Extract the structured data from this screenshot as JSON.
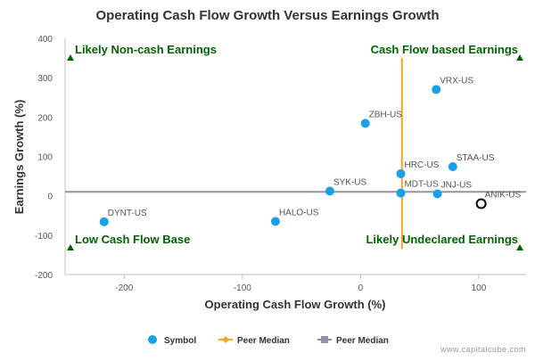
{
  "chart_data": {
    "type": "scatter",
    "title": "Operating Cash Flow Growth Versus Earnings Growth",
    "xlabel": "Operating Cash Flow Growth (%)",
    "ylabel": "Earnings Growth (%)",
    "xlim": [
      -250,
      140
    ],
    "ylim": [
      -200,
      400
    ],
    "x_ticks": [
      -200,
      -100,
      0,
      100
    ],
    "y_ticks": [
      -200,
      -100,
      0,
      100,
      200,
      300,
      400
    ],
    "grid": false,
    "legend_position": "bottom",
    "colors": {
      "symbol": "#1aa0e8",
      "peer_median_x": "#f5a623",
      "peer_median_y": "#8c96a8",
      "quadrant_label": "#006400",
      "highlight": "#000000"
    },
    "points": [
      {
        "label": "VRX-US",
        "x": 64,
        "y": 270
      },
      {
        "label": "ZBH-US",
        "x": 4,
        "y": 184
      },
      {
        "label": "STAA-US",
        "x": 78,
        "y": 74
      },
      {
        "label": "HRC-US",
        "x": 34,
        "y": 56
      },
      {
        "label": "SYK-US",
        "x": -26,
        "y": 12
      },
      {
        "label": "MDT-US",
        "x": 34,
        "y": 7
      },
      {
        "label": "JNJ-US",
        "x": 65,
        "y": 5
      },
      {
        "label": "HALO-US",
        "x": -72,
        "y": -65
      },
      {
        "label": "DYNT-US",
        "x": -217,
        "y": -66
      }
    ],
    "highlight_point": {
      "label": "ANIK-US",
      "x": 102,
      "y": -20
    },
    "peer_median": {
      "x": 35,
      "y": 10
    },
    "quadrant_labels": {
      "top_left": "Likely Non-cash Earnings",
      "top_right": "Cash Flow based Earnings",
      "bottom_left": "Low Cash Flow Base",
      "bottom_right": "Likely Undeclared Earnings"
    },
    "legend": [
      {
        "name": "Symbol",
        "marker": "circle"
      },
      {
        "name": "Peer Median",
        "marker": "diamond-line"
      },
      {
        "name": "Peer Median",
        "marker": "square-line"
      }
    ]
  },
  "watermark": "www.capitalcube.com"
}
